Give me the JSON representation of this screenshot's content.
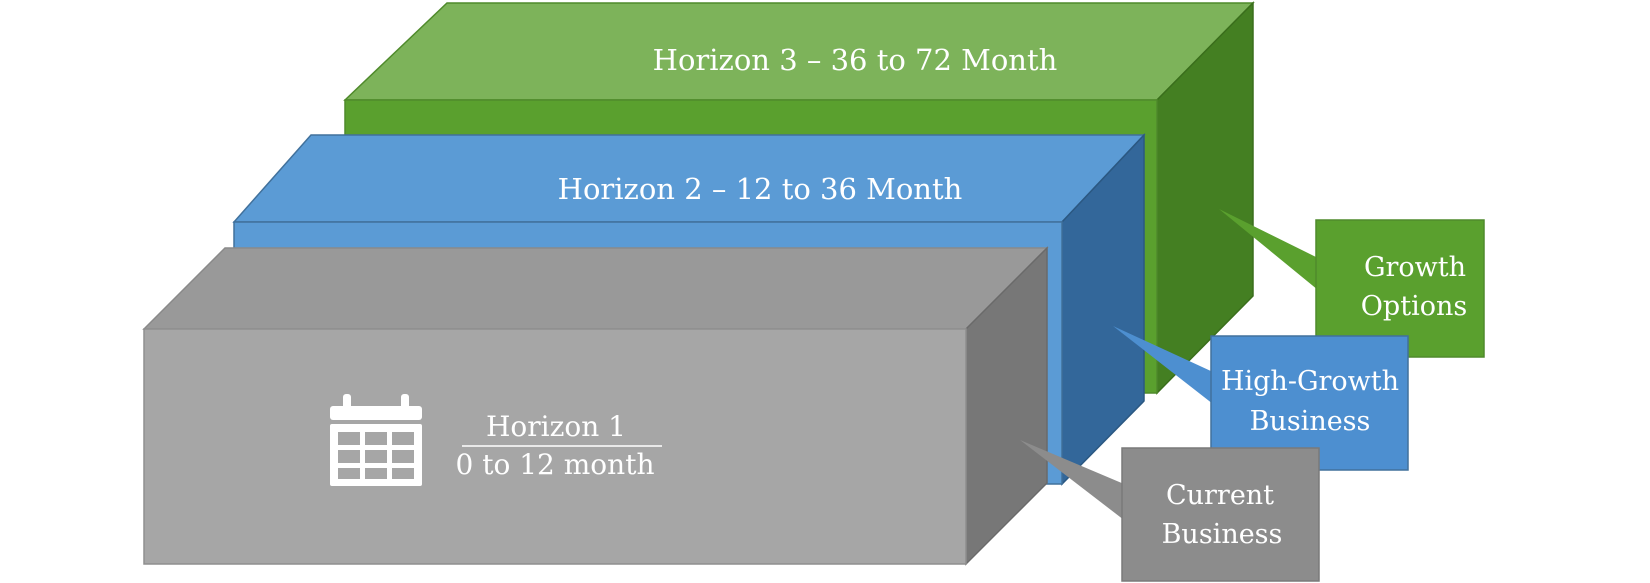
{
  "horizons": [
    {
      "id": "h3",
      "label": "Horizon 3 – 36 to 72 Month",
      "callout": [
        "Growth",
        "Options"
      ],
      "colors": {
        "front": "#5aa02e",
        "top": "#7db35a",
        "side": "#447f22",
        "callout": "#5aa02e"
      }
    },
    {
      "id": "h2",
      "label": "Horizon 2 – 12 to 36 Month",
      "callout": [
        "High-Growth",
        "Business"
      ],
      "colors": {
        "front": "#5b9bd5",
        "top": "#5b9bd5",
        "side": "#33679a",
        "callout": "#4d8fd0"
      }
    },
    {
      "id": "h1",
      "label_line1": "Horizon 1",
      "label_line2": "0 to 12 month",
      "callout": [
        "Current",
        "Business"
      ],
      "icon": "calendar-icon",
      "colors": {
        "front": "#a6a6a6",
        "top": "#999999",
        "side": "#777777",
        "callout": "#8c8c8c"
      }
    }
  ]
}
